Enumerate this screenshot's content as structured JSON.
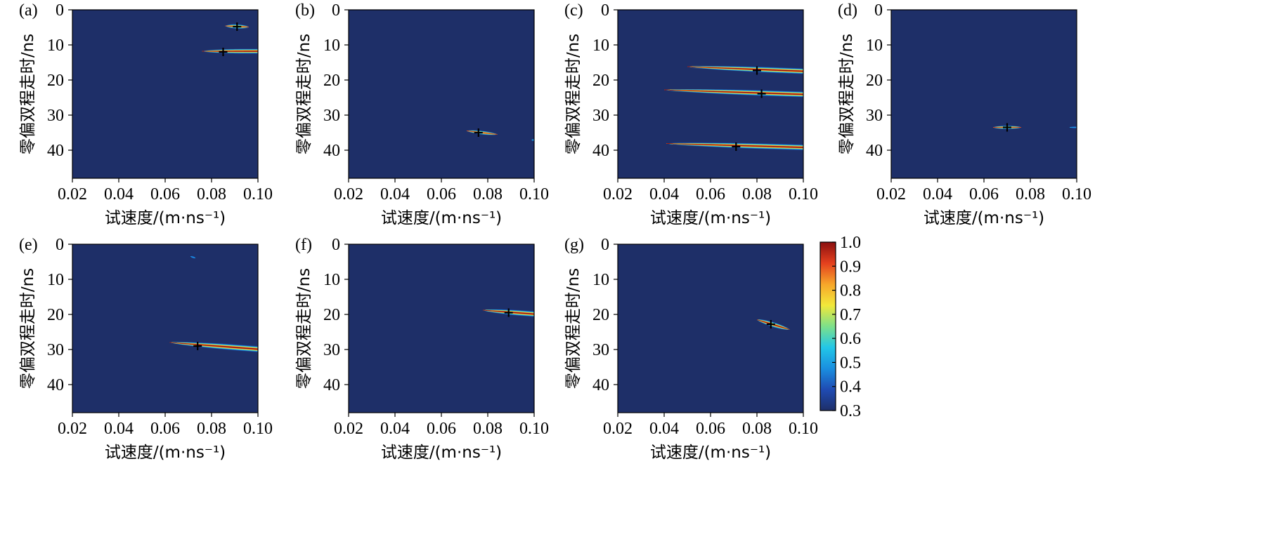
{
  "colors": {
    "background": "#1e2f68",
    "peak_marker": "#000000",
    "colormap": [
      "#1e2f68",
      "#1f4bb3",
      "#1a8fe0",
      "#22c7e8",
      "#7de08a",
      "#f2e83a",
      "#f7a62a",
      "#e4401e",
      "#8b1010"
    ]
  },
  "colorbar": {
    "min": 0.3,
    "max": 1.0,
    "ticks": [
      "1.0",
      "0.9",
      "0.8",
      "0.7",
      "0.6",
      "0.5",
      "0.4",
      "0.3"
    ]
  },
  "chart_data": [
    {
      "label": "(a)",
      "type": "heatmap",
      "xlabel": "试速度/(m·ns⁻¹)",
      "ylabel": "零偏双程走时/ns",
      "xlim": [
        0.02,
        0.1
      ],
      "ylim": [
        48,
        0
      ],
      "xticks": [
        "0.02",
        "0.04",
        "0.06",
        "0.08",
        "0.10"
      ],
      "yticks": [
        "0",
        "10",
        "20",
        "30",
        "40"
      ],
      "features": [
        {
          "v_start": 0.086,
          "v_end": 0.096,
          "t_start": 4.6,
          "t_end": 4.9,
          "thickness": 1.3,
          "peak": 0.95
        },
        {
          "v_start": 0.076,
          "v_end": 0.1,
          "t_start": 11.8,
          "t_end": 11.8,
          "thickness": 1.4,
          "peak": 1.0
        }
      ],
      "peaks": [
        {
          "v": 0.091,
          "t": 4.8
        },
        {
          "v": 0.085,
          "t": 12.0
        }
      ]
    },
    {
      "label": "(b)",
      "type": "heatmap",
      "xlabel": "试速度/(m·ns⁻¹)",
      "ylabel": "零偏双程走时/ns",
      "xlim": [
        0.02,
        0.1
      ],
      "ylim": [
        48,
        0
      ],
      "xticks": [
        "0.02",
        "0.04",
        "0.06",
        "0.08",
        "0.10"
      ],
      "yticks": [
        "0",
        "10",
        "20",
        "30",
        "40"
      ],
      "features": [
        {
          "v_start": 0.071,
          "v_end": 0.084,
          "t_start": 34.5,
          "t_end": 35.5,
          "thickness": 1.1,
          "peak": 0.95
        },
        {
          "v_start": 0.099,
          "v_end": 0.1,
          "t_start": 37.1,
          "t_end": 37.1,
          "thickness": 0.7,
          "peak": 0.55
        }
      ],
      "peaks": [
        {
          "v": 0.076,
          "t": 35.0
        }
      ]
    },
    {
      "label": "(c)",
      "type": "heatmap",
      "xlabel": "试速度/(m·ns⁻¹)",
      "ylabel": "零偏双程走时/ns",
      "xlim": [
        0.02,
        0.1
      ],
      "ylim": [
        48,
        0
      ],
      "xticks": [
        "0.02",
        "0.04",
        "0.06",
        "0.08",
        "0.10"
      ],
      "yticks": [
        "0",
        "10",
        "20",
        "30",
        "40"
      ],
      "features": [
        {
          "v_start": 0.05,
          "v_end": 0.1,
          "t_start": 16.2,
          "t_end": 17.5,
          "thickness": 1.6,
          "peak": 1.0
        },
        {
          "v_start": 0.04,
          "v_end": 0.1,
          "t_start": 22.8,
          "t_end": 24.1,
          "thickness": 1.6,
          "peak": 1.0
        },
        {
          "v_start": 0.041,
          "v_end": 0.1,
          "t_start": 38.1,
          "t_end": 39.2,
          "thickness": 1.6,
          "peak": 1.0
        }
      ],
      "peaks": [
        {
          "v": 0.08,
          "t": 17.3
        },
        {
          "v": 0.082,
          "t": 23.9
        },
        {
          "v": 0.071,
          "t": 39.0
        }
      ]
    },
    {
      "label": "(d)",
      "type": "heatmap",
      "xlabel": "试速度/(m·ns⁻¹)",
      "ylabel": "零偏双程走时/ns",
      "xlim": [
        0.02,
        0.1
      ],
      "ylim": [
        48,
        0
      ],
      "xticks": [
        "0.02",
        "0.04",
        "0.06",
        "0.08",
        "0.10"
      ],
      "yticks": [
        "0",
        "10",
        "20",
        "30",
        "40"
      ],
      "features": [
        {
          "v_start": 0.064,
          "v_end": 0.076,
          "t_start": 33.5,
          "t_end": 33.5,
          "thickness": 1.0,
          "peak": 0.95
        },
        {
          "v_start": 0.097,
          "v_end": 0.1,
          "t_start": 33.5,
          "t_end": 33.5,
          "thickness": 0.6,
          "peak": 0.5
        }
      ],
      "peaks": [
        {
          "v": 0.07,
          "t": 33.5
        }
      ]
    },
    {
      "label": "(e)",
      "type": "heatmap",
      "xlabel": "试速度/(m·ns⁻¹)",
      "ylabel": "零偏双程走时/ns",
      "xlim": [
        0.02,
        0.1
      ],
      "ylim": [
        48,
        0
      ],
      "xticks": [
        "0.02",
        "0.04",
        "0.06",
        "0.08",
        "0.10"
      ],
      "yticks": [
        "0",
        "10",
        "20",
        "30",
        "40"
      ],
      "features": [
        {
          "v_start": 0.071,
          "v_end": 0.073,
          "t_start": 3.5,
          "t_end": 3.9,
          "thickness": 0.7,
          "peak": 0.5
        },
        {
          "v_start": 0.062,
          "v_end": 0.1,
          "t_start": 28.0,
          "t_end": 29.9,
          "thickness": 1.7,
          "peak": 1.0
        }
      ],
      "peaks": [
        {
          "v": 0.074,
          "t": 29.0
        }
      ]
    },
    {
      "label": "(f)",
      "type": "heatmap",
      "xlabel": "试速度/(m·ns⁻¹)",
      "ylabel": "零偏双程走时/ns",
      "xlim": [
        0.02,
        0.1
      ],
      "ylim": [
        48,
        0
      ],
      "xticks": [
        "0.02",
        "0.04",
        "0.06",
        "0.08",
        "0.10"
      ],
      "yticks": [
        "0",
        "10",
        "20",
        "30",
        "40"
      ],
      "features": [
        {
          "v_start": 0.078,
          "v_end": 0.1,
          "t_start": 18.8,
          "t_end": 19.9,
          "thickness": 1.6,
          "peak": 1.0
        }
      ],
      "peaks": [
        {
          "v": 0.089,
          "t": 19.5
        }
      ]
    },
    {
      "label": "(g)",
      "type": "heatmap",
      "xlabel": "试速度/(m·ns⁻¹)",
      "ylabel": "零偏双程走时/ns",
      "xlim": [
        0.02,
        0.1
      ],
      "ylim": [
        48,
        0
      ],
      "xticks": [
        "0.02",
        "0.04",
        "0.06",
        "0.08",
        "0.10"
      ],
      "yticks": [
        "0",
        "10",
        "20",
        "30",
        "40"
      ],
      "features": [
        {
          "v_start": 0.08,
          "v_end": 0.094,
          "t_start": 21.5,
          "t_end": 24.3,
          "thickness": 1.5,
          "peak": 1.0
        }
      ],
      "peaks": [
        {
          "v": 0.086,
          "t": 22.8
        }
      ]
    }
  ]
}
